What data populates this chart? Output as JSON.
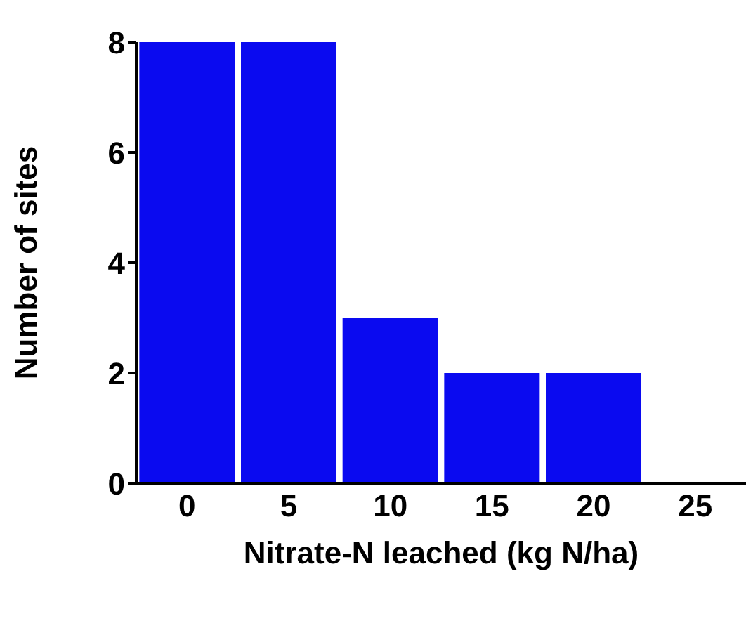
{
  "chart_data": {
    "type": "bar",
    "categories": [
      "0",
      "5",
      "10",
      "15",
      "20",
      "25"
    ],
    "values": [
      8,
      8,
      3,
      2,
      2,
      0
    ],
    "color": "#0a0af0",
    "xlabel": "Nitrate-N leached (kg N/ha)",
    "ylabel": "Number of sites",
    "ylim": [
      0,
      8
    ],
    "yticks": [
      0,
      2,
      4,
      6,
      8
    ],
    "grid": false,
    "legend": false
  }
}
